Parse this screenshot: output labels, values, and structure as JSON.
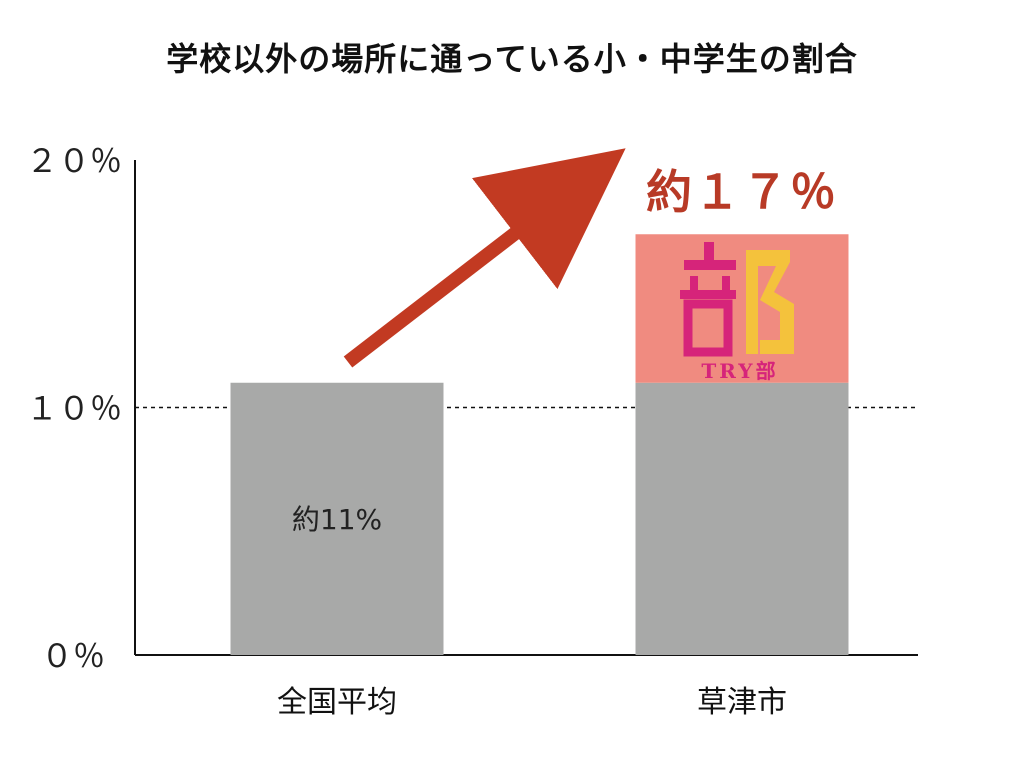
{
  "chart_data": {
    "type": "bar",
    "title": "学校以外の場所に通っている小・中学生の割合",
    "categories": [
      "全国平均",
      "草津市"
    ],
    "series": [
      {
        "values": [
          11,
          11
        ]
      },
      {
        "values": [
          0,
          6
        ]
      }
    ],
    "y_tick_labels": [
      "０％",
      "１０％",
      "２０％"
    ],
    "y_ticks": [
      0,
      10,
      20
    ],
    "ylim": [
      0,
      20
    ],
    "reference_line": 10,
    "data_labels": [
      "約11%"
    ],
    "callout": "約１７％",
    "logo_caption": "TRY部",
    "colors": {
      "base_bar": "#a8a9a8",
      "extra_bar": "#f08b80",
      "arrow": "#c23a22",
      "callout": "#b83a26",
      "logo_magenta": "#d6247a",
      "logo_yellow": "#f4c23c"
    }
  }
}
